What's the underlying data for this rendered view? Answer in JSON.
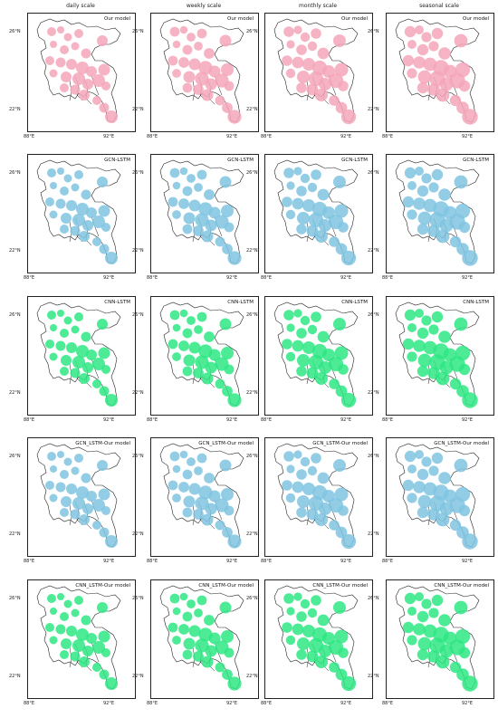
{
  "columns": [
    "daily scale",
    "weekly scale",
    "monthly scale",
    "seasonal scale"
  ],
  "rows": [
    {
      "label": "Our model",
      "color": "#f4a6b8"
    },
    {
      "label": "GCN-LSTM",
      "color": "#7fc4e0"
    },
    {
      "label": "CNN-LSTM",
      "color": "#2ee884"
    },
    {
      "label": "GCN_LSTM-Our model",
      "color": "#7fc4e0"
    },
    {
      "label": "CNN_LSTM-Our model",
      "color": "#2ee884"
    }
  ],
  "axes": {
    "y_ticks": [
      "26°N",
      "22°N"
    ],
    "x_ticks": [
      "88°E",
      "92°E"
    ]
  }
}
